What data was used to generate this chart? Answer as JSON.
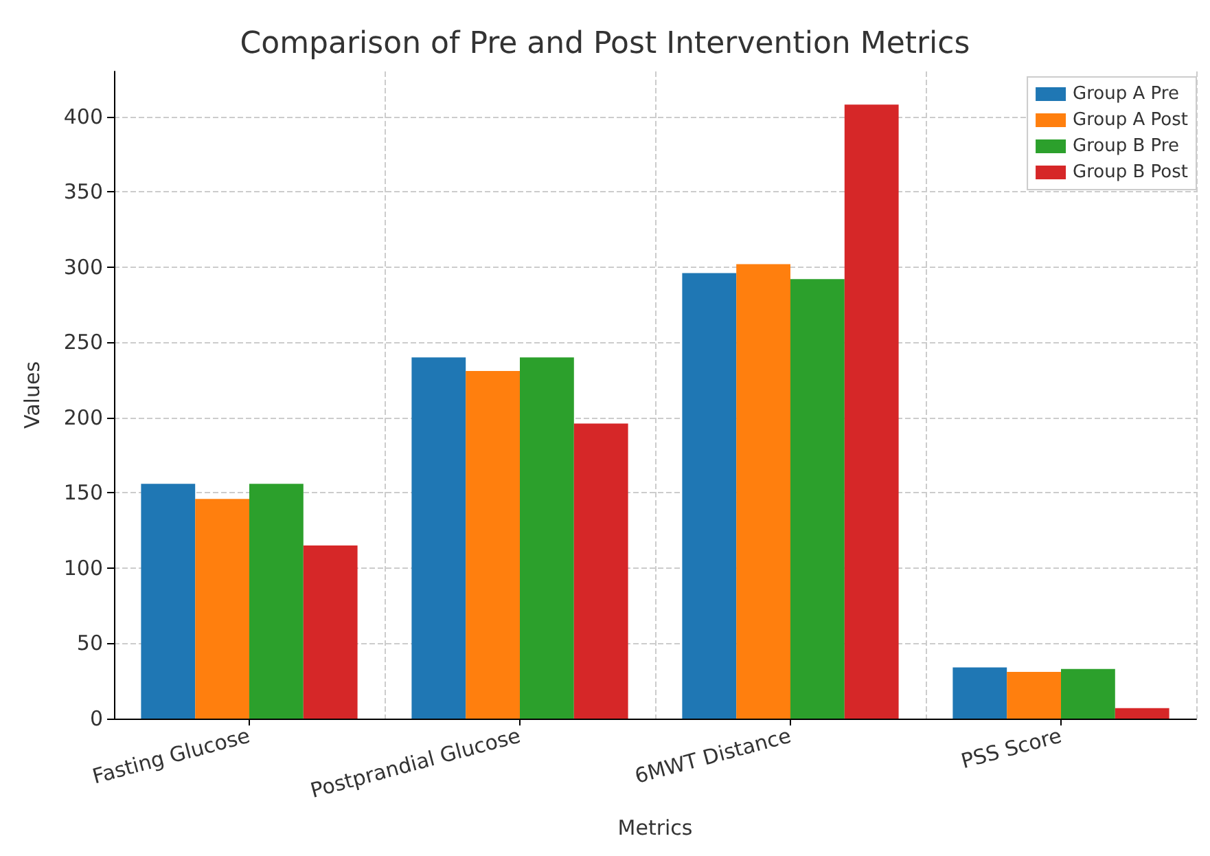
{
  "chart_data": {
    "type": "bar",
    "title": "Comparison of Pre and Post Intervention Metrics",
    "xlabel": "Metrics",
    "ylabel": "Values",
    "categories": [
      "Fasting Glucose",
      "Postprandial Glucose",
      "6MWT Distance",
      "PSS Score"
    ],
    "series": [
      {
        "name": "Group A Pre",
        "color": "#1f77b4",
        "values": [
          156,
          240,
          296,
          34
        ]
      },
      {
        "name": "Group A Post",
        "color": "#ff7f0e",
        "values": [
          146,
          231,
          302,
          31
        ]
      },
      {
        "name": "Group B Pre",
        "color": "#2ca02c",
        "values": [
          156,
          240,
          292,
          33
        ]
      },
      {
        "name": "Group B Post",
        "color": "#d62728",
        "values": [
          115,
          196,
          408,
          7
        ]
      }
    ],
    "ylim": [
      0,
      430
    ],
    "yticks": [
      0,
      50,
      100,
      150,
      200,
      250,
      300,
      350,
      400
    ],
    "grid": true,
    "legend": "top right"
  }
}
